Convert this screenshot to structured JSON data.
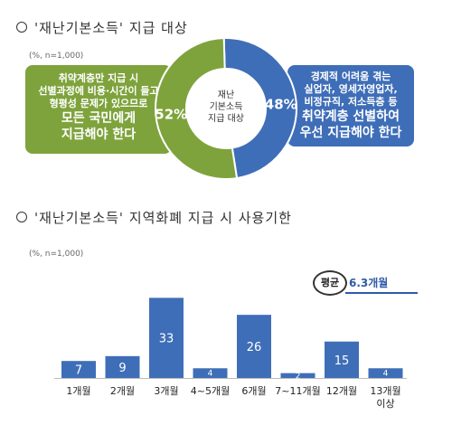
{
  "section1": {
    "title": "'재난기본소득' 지급 대상"
  },
  "section2": {
    "title": "'재난기본소득' 지역화폐 지급 시 사용기한"
  },
  "pie": {
    "note": "(%, n=1,000)",
    "center_label": [
      "재난",
      "기본소득",
      "지급 대상"
    ],
    "left_callout": {
      "lines": [
        "취약계층만 지급 시",
        "선별과정에 비용·시간이 들고",
        "형평성 문제가 있으므로"
      ],
      "emph": [
        "모든 국민에게",
        "지급해야 한다"
      ]
    },
    "right_callout": {
      "lines": [
        "경제적 어려움 겪는",
        "실업자, 영세자영업자,",
        "비정규직, 저소득층 등"
      ],
      "emph": [
        "취약계층 선별하여",
        "우선 지급해야 한다"
      ]
    }
  },
  "bar": {
    "note": "(%, n=1,000)",
    "avg_badge": "평균",
    "avg_value": "6.3개월"
  },
  "colors": {
    "green": "#7ea33c",
    "blue": "#3f6eb8",
    "blue_dark": "#2e5aa8"
  },
  "chart_data": [
    {
      "type": "pie",
      "title": "'재난기본소득' 지급 대상",
      "slices": [
        {
          "label": "모든 국민에게 지급해야 한다",
          "value": 52,
          "display": "52%",
          "color": "#7ea33c"
        },
        {
          "label": "취약계층 선별하여 우선 지급해야 한다",
          "value": 48,
          "display": "48%",
          "color": "#3f6eb8"
        }
      ]
    },
    {
      "type": "bar",
      "title": "'재난기본소득' 지역화폐 지급 시 사용기한",
      "categories": [
        "1개월",
        "2개월",
        "3개월",
        "4~5개월",
        "6개월",
        "7~11개월",
        "12개월",
        "13개월\n이상"
      ],
      "values": [
        7,
        9,
        33,
        4,
        26,
        2,
        15,
        4
      ],
      "ylim": [
        0,
        35
      ],
      "color": "#3f6eb8"
    }
  ]
}
